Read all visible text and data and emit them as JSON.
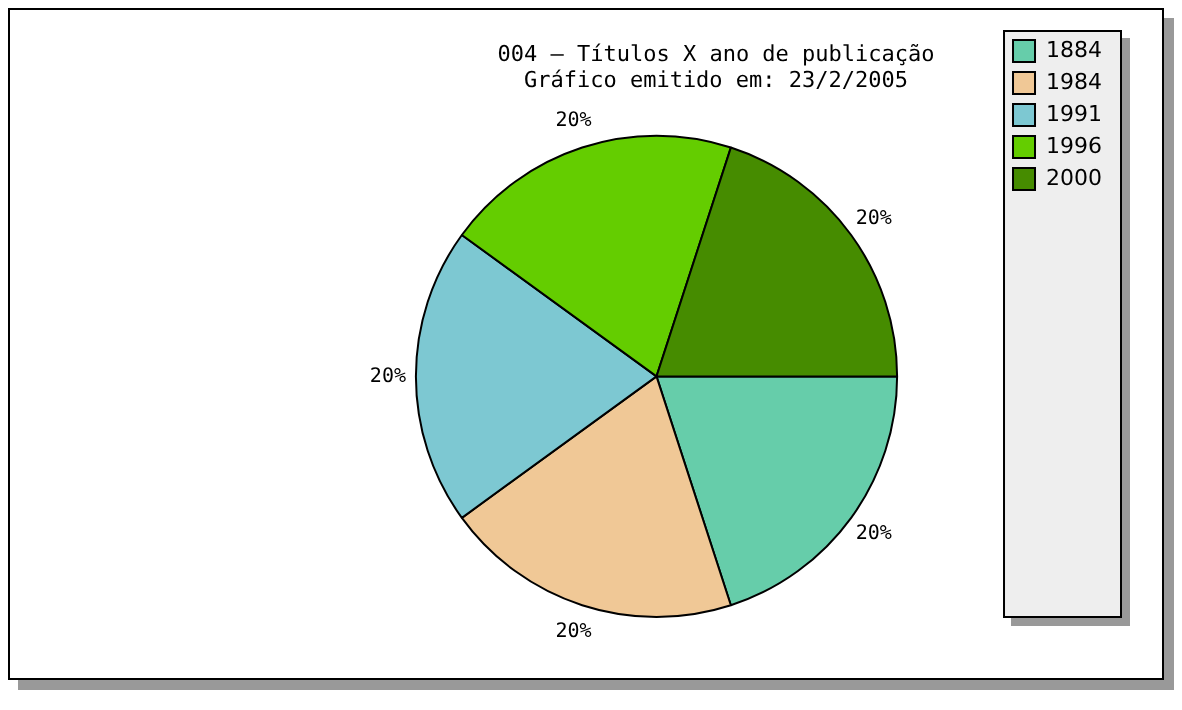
{
  "chart_data": {
    "type": "pie",
    "title": "004 – Títulos X ano de publicação",
    "subtitle": "Gráfico emitido em: 23/2/2005",
    "categories": [
      "1884",
      "1984",
      "1991",
      "1996",
      "2000"
    ],
    "values": [
      20,
      20,
      20,
      20,
      20
    ],
    "value_labels": [
      "20%",
      "20%",
      "20%",
      "20%",
      "20%"
    ],
    "colors": [
      "#66cdaa",
      "#f0c896",
      "#7dc8d2",
      "#64cd00",
      "#468c00"
    ],
    "legend": "top right"
  }
}
